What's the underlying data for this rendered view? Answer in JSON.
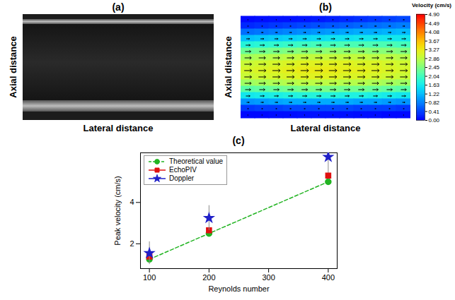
{
  "chart_data": [
    {
      "type": "image",
      "title": "(a)",
      "xlabel": "Lateral distance",
      "ylabel": "Axial distance",
      "tick_labels": false
    },
    {
      "type": "heatmap",
      "title": "(b)",
      "xlabel": "Lateral distance",
      "ylabel": "Axial distance",
      "tick_labels": false,
      "cells": [
        [
          0.05,
          0.08,
          0.1,
          0.1,
          0.12,
          0.15,
          0.2,
          0.25,
          0.3,
          0.35,
          0.4,
          0.45
        ],
        [
          0.25,
          0.3,
          0.35,
          0.4,
          0.45,
          0.5,
          0.55,
          0.6,
          0.65,
          0.7,
          0.75,
          0.8
        ],
        [
          0.7,
          0.75,
          0.8,
          0.85,
          0.9,
          0.95,
          1.0,
          1.05,
          1.1,
          1.1,
          1.15,
          1.2
        ],
        [
          1.25,
          1.3,
          1.35,
          1.4,
          1.45,
          1.5,
          1.55,
          1.55,
          1.6,
          1.6,
          1.6,
          1.6
        ],
        [
          1.8,
          1.85,
          1.9,
          1.95,
          2.0,
          2.05,
          2.05,
          2.1,
          2.1,
          2.1,
          2.1,
          2.05
        ],
        [
          2.3,
          2.35,
          2.4,
          2.45,
          2.5,
          2.5,
          2.55,
          2.55,
          2.55,
          2.5,
          2.5,
          2.45
        ],
        [
          2.7,
          2.75,
          2.8,
          2.85,
          2.9,
          2.9,
          2.9,
          2.9,
          2.9,
          2.85,
          2.85,
          2.8
        ],
        [
          2.95,
          3.0,
          3.05,
          3.1,
          3.15,
          3.15,
          3.15,
          3.15,
          3.1,
          3.1,
          3.05,
          3.0
        ],
        [
          3.05,
          3.1,
          3.15,
          3.2,
          3.25,
          3.25,
          3.25,
          3.2,
          3.2,
          3.15,
          3.1,
          3.05
        ],
        [
          2.95,
          3.0,
          3.05,
          3.1,
          3.15,
          3.15,
          3.15,
          3.1,
          3.1,
          3.05,
          3.0,
          2.95
        ],
        [
          2.65,
          2.7,
          2.75,
          2.8,
          2.85,
          2.85,
          2.85,
          2.8,
          2.8,
          2.75,
          2.7,
          2.65
        ],
        [
          2.2,
          2.25,
          2.3,
          2.35,
          2.4,
          2.4,
          2.4,
          2.35,
          2.35,
          2.3,
          2.25,
          2.2
        ],
        [
          1.6,
          1.65,
          1.7,
          1.75,
          1.8,
          1.8,
          1.8,
          1.75,
          1.75,
          1.7,
          1.65,
          1.6
        ],
        [
          0.95,
          1.0,
          1.05,
          1.1,
          1.1,
          1.1,
          1.1,
          1.1,
          1.05,
          1.05,
          1.0,
          0.95
        ],
        [
          0.35,
          0.4,
          0.4,
          0.45,
          0.45,
          0.45,
          0.45,
          0.45,
          0.4,
          0.4,
          0.4,
          0.35
        ],
        [
          0.05,
          0.05,
          0.08,
          0.08,
          0.1,
          0.1,
          0.1,
          0.1,
          0.08,
          0.08,
          0.05,
          0.05
        ]
      ],
      "colorbar": {
        "label": "Velocity (cm/s)",
        "range": [
          0,
          4.9
        ],
        "ticks": [
          {
            "value": 0,
            "label": "0.00"
          },
          {
            "value": 0.41,
            "label": "0.41"
          },
          {
            "value": 0.82,
            "label": "0.82"
          },
          {
            "value": 1.22,
            "label": "1.22"
          },
          {
            "value": 1.63,
            "label": "1.63"
          },
          {
            "value": 2.04,
            "label": "2.04"
          },
          {
            "value": 2.45,
            "label": "2.45"
          },
          {
            "value": 2.86,
            "label": "2.86"
          },
          {
            "value": 3.27,
            "label": "3.27"
          },
          {
            "value": 3.67,
            "label": "3.67"
          },
          {
            "value": 4.08,
            "label": "4.08"
          },
          {
            "value": 4.49,
            "label": "4.49"
          },
          {
            "value": 4.9,
            "label": "4.90"
          }
        ]
      }
    },
    {
      "type": "line",
      "title": "(c)",
      "xlabel": "Reynolds number",
      "ylabel": "Peak velocity (cm/s)",
      "x": [
        100,
        200,
        400
      ],
      "xlim": [
        85,
        415
      ],
      "xticks": [
        100,
        200,
        300,
        400
      ],
      "ylim": [
        0.8,
        6.4
      ],
      "yticks": [
        2,
        4
      ],
      "legend": "upper left",
      "series": [
        {
          "name": "Theoretical value",
          "type": "line",
          "color": "#22b422",
          "marker": "circle",
          "line_style": "dashed",
          "values": [
            1.25,
            2.5,
            5.0
          ]
        },
        {
          "name": "EchoPIV",
          "type": "scatter",
          "color": "#e01010",
          "marker": "square",
          "values": [
            1.38,
            2.65,
            5.3
          ],
          "errors": [
            0.12,
            0.15,
            0.2
          ]
        },
        {
          "name": "Doppler",
          "type": "scatter",
          "color": "#2020c8",
          "marker": "star",
          "values": [
            1.55,
            3.25,
            6.2
          ],
          "errors": [
            0.55,
            0.6,
            0.7
          ]
        }
      ]
    }
  ]
}
